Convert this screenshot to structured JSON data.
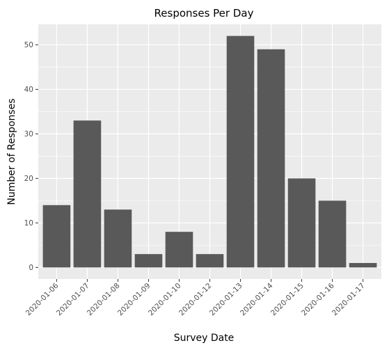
{
  "chart_data": {
    "type": "bar",
    "title": "Responses Per Day",
    "xlabel": "Survey Date",
    "ylabel": "Number of Responses",
    "categories": [
      "2020-01-06",
      "2020-01-07",
      "2020-01-08",
      "2020-01-09",
      "2020-01-10",
      "2020-01-12",
      "2020-01-13",
      "2020-01-14",
      "2020-01-15",
      "2020-01-16",
      "2020-01-17"
    ],
    "values": [
      14,
      33,
      13,
      3,
      8,
      3,
      52,
      49,
      20,
      15,
      1
    ],
    "ylim": [
      -2.6,
      54.6
    ],
    "yticks": [
      0,
      10,
      20,
      30,
      40,
      50
    ],
    "grid": true,
    "colors": {
      "bar": "#595959",
      "panel": "#ebebeb",
      "grid": "#ffffff"
    }
  }
}
